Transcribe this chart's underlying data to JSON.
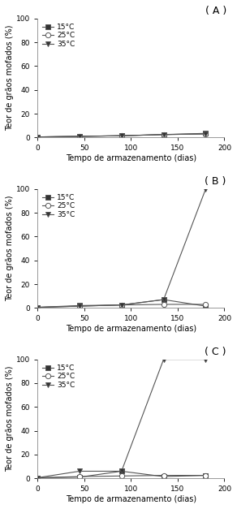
{
  "x": [
    0,
    45,
    90,
    135,
    180
  ],
  "panel_A": {
    "label": "( A )",
    "y_15": [
      0.5,
      1.0,
      1.5,
      2.5,
      3.5
    ],
    "y_25": [
      0.5,
      1.0,
      1.5,
      2.5,
      3.0
    ],
    "y_35": [
      0.5,
      1.0,
      1.5,
      2.5,
      3.0
    ]
  },
  "panel_B": {
    "label": "( B )",
    "y_15": [
      0.5,
      2.0,
      2.5,
      7.0,
      1.5
    ],
    "y_25": [
      0.5,
      1.5,
      2.5,
      3.0,
      3.0
    ],
    "y_35": [
      0.5,
      1.5,
      2.5,
      7.0,
      100.0
    ]
  },
  "panel_C": {
    "label": "( C )",
    "y_15": [
      0.5,
      1.0,
      6.0,
      1.5,
      2.5
    ],
    "y_25": [
      0.5,
      1.5,
      2.0,
      2.5,
      2.5
    ],
    "y_35": [
      0.5,
      6.0,
      6.0,
      100.0,
      100.0
    ]
  },
  "ylim": [
    0,
    100
  ],
  "yticks": [
    0,
    20,
    40,
    60,
    80,
    100
  ],
  "xlim": [
    0,
    200
  ],
  "xticks": [
    0,
    50,
    100,
    150,
    200
  ],
  "legend_labels": [
    "15°C",
    "25°C",
    "35°C"
  ],
  "xlabel": "Tempo de armazenamento (dias)",
  "ylabel": "Teor de grãos mofados (%)",
  "line_color": "#555555",
  "marker_15": "s",
  "marker_25": "o",
  "marker_35": "v",
  "marker_fill_15": "#333333",
  "marker_fill_25": "white",
  "marker_fill_35": "#333333",
  "fontsize_label": 7,
  "fontsize_tick": 6.5,
  "fontsize_legend": 6.5,
  "fontsize_panel": 9,
  "markersize": 4.5,
  "linewidth": 0.8
}
